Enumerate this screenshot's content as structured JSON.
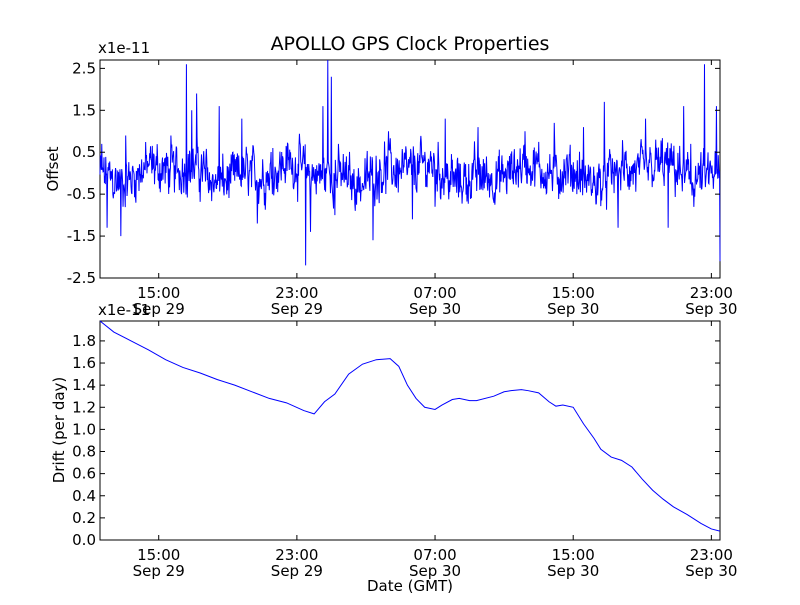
{
  "chart_data": [
    {
      "type": "line",
      "title": "APOLLO GPS Clock Properties",
      "ylabel": "Offset",
      "xlabel": "",
      "scale_label": "x1e-11",
      "grid": false,
      "series_color": "#0000ff",
      "x_range_hours": [
        11.6,
        47.5
      ],
      "ylim": [
        -2.5,
        2.7
      ],
      "yticks": [
        {
          "v": 2.5,
          "label": "2.5"
        },
        {
          "v": 1.5,
          "label": "1.5"
        },
        {
          "v": 0.5,
          "label": "0.5"
        },
        {
          "v": -0.5,
          "label": "-0.5"
        },
        {
          "v": -1.5,
          "label": "-1.5"
        },
        {
          "v": -2.5,
          "label": "-2.5"
        }
      ],
      "xticks": [
        {
          "h": 15,
          "time": "15:00",
          "date": "Sep 29"
        },
        {
          "h": 23,
          "time": "23:00",
          "date": "Sep 29"
        },
        {
          "h": 31,
          "time": "07:00",
          "date": "Sep 30"
        },
        {
          "h": 39,
          "time": "15:00",
          "date": "Sep 30"
        },
        {
          "h": 47,
          "time": "23:00",
          "date": "Sep 30"
        }
      ],
      "spikes": [
        {
          "h": 11.7,
          "v": 0.7
        },
        {
          "h": 12.0,
          "v": -1.3
        },
        {
          "h": 12.8,
          "v": -1.5
        },
        {
          "h": 13.1,
          "v": 0.9
        },
        {
          "h": 15.7,
          "v": 0.9
        },
        {
          "h": 16.6,
          "v": 2.6
        },
        {
          "h": 16.9,
          "v": 1.5
        },
        {
          "h": 17.2,
          "v": 1.9
        },
        {
          "h": 18.5,
          "v": 1.6
        },
        {
          "h": 19.8,
          "v": 1.3
        },
        {
          "h": 20.7,
          "v": -1.2
        },
        {
          "h": 21.6,
          "v": 0.6
        },
        {
          "h": 23.5,
          "v": -2.2
        },
        {
          "h": 23.8,
          "v": -1.4
        },
        {
          "h": 24.5,
          "v": 1.6
        },
        {
          "h": 24.8,
          "v": 2.7
        },
        {
          "h": 25.0,
          "v": 2.3
        },
        {
          "h": 25.2,
          "v": -1.0
        },
        {
          "h": 27.4,
          "v": -1.6
        },
        {
          "h": 28.3,
          "v": 1.0
        },
        {
          "h": 29.7,
          "v": -1.1
        },
        {
          "h": 31.0,
          "v": -0.8
        },
        {
          "h": 31.6,
          "v": 1.3
        },
        {
          "h": 33.5,
          "v": 1.1
        },
        {
          "h": 36.2,
          "v": 1.0
        },
        {
          "h": 37.9,
          "v": 1.2
        },
        {
          "h": 39.6,
          "v": 1.1
        },
        {
          "h": 40.8,
          "v": 1.7
        },
        {
          "h": 41.6,
          "v": -1.3
        },
        {
          "h": 43.2,
          "v": 1.3
        },
        {
          "h": 44.5,
          "v": -1.3
        },
        {
          "h": 45.4,
          "v": 1.6
        },
        {
          "h": 45.8,
          "v": 0.7
        },
        {
          "h": 46.6,
          "v": 2.6
        },
        {
          "h": 47.3,
          "v": 1.6
        },
        {
          "h": 47.5,
          "v": -2.1
        }
      ]
    },
    {
      "type": "line",
      "title": "",
      "ylabel": "Drift (per day)",
      "xlabel": "Date (GMT)",
      "scale_label": "x1e-11",
      "grid": false,
      "series_color": "#0000ff",
      "x_range_hours": [
        11.6,
        47.5
      ],
      "ylim": [
        0.0,
        1.98
      ],
      "yticks": [
        {
          "v": 1.8,
          "label": "1.8"
        },
        {
          "v": 1.6,
          "label": "1.6"
        },
        {
          "v": 1.4,
          "label": "1.4"
        },
        {
          "v": 1.2,
          "label": "1.2"
        },
        {
          "v": 1.0,
          "label": "1.0"
        },
        {
          "v": 0.8,
          "label": "0.8"
        },
        {
          "v": 0.6,
          "label": "0.6"
        },
        {
          "v": 0.4,
          "label": "0.4"
        },
        {
          "v": 0.2,
          "label": "0.2"
        },
        {
          "v": 0.0,
          "label": "0.0"
        }
      ],
      "xticks": [
        {
          "h": 15,
          "time": "15:00",
          "date": "Sep 29"
        },
        {
          "h": 23,
          "time": "23:00",
          "date": "Sep 29"
        },
        {
          "h": 31,
          "time": "07:00",
          "date": "Sep 30"
        },
        {
          "h": 39,
          "time": "15:00",
          "date": "Sep 30"
        },
        {
          "h": 47,
          "time": "23:00",
          "date": "Sep 30"
        }
      ],
      "x": [
        11.6,
        12.4,
        13.4,
        14.4,
        15.4,
        16.4,
        17.4,
        18.4,
        19.4,
        20.4,
        21.4,
        22.4,
        23.4,
        24.0,
        24.6,
        25.2,
        26.0,
        26.8,
        27.6,
        28.4,
        28.9,
        29.4,
        29.9,
        30.4,
        31.0,
        31.4,
        32.0,
        32.4,
        33.0,
        33.4,
        34.4,
        35.0,
        35.4,
        36.0,
        36.4,
        37.0,
        37.6,
        38.0,
        38.4,
        39.0,
        39.6,
        40.2,
        40.6,
        41.2,
        41.8,
        42.4,
        43.0,
        43.6,
        44.2,
        44.8,
        45.6,
        46.4,
        47.0,
        47.5
      ],
      "y": [
        1.98,
        1.88,
        1.8,
        1.72,
        1.63,
        1.56,
        1.51,
        1.45,
        1.4,
        1.34,
        1.28,
        1.24,
        1.17,
        1.14,
        1.25,
        1.32,
        1.5,
        1.59,
        1.63,
        1.64,
        1.57,
        1.4,
        1.28,
        1.2,
        1.18,
        1.22,
        1.27,
        1.28,
        1.26,
        1.26,
        1.3,
        1.34,
        1.35,
        1.36,
        1.35,
        1.33,
        1.25,
        1.21,
        1.22,
        1.2,
        1.05,
        0.92,
        0.82,
        0.75,
        0.72,
        0.66,
        0.55,
        0.45,
        0.37,
        0.3,
        0.23,
        0.15,
        0.1,
        0.08
      ]
    }
  ]
}
